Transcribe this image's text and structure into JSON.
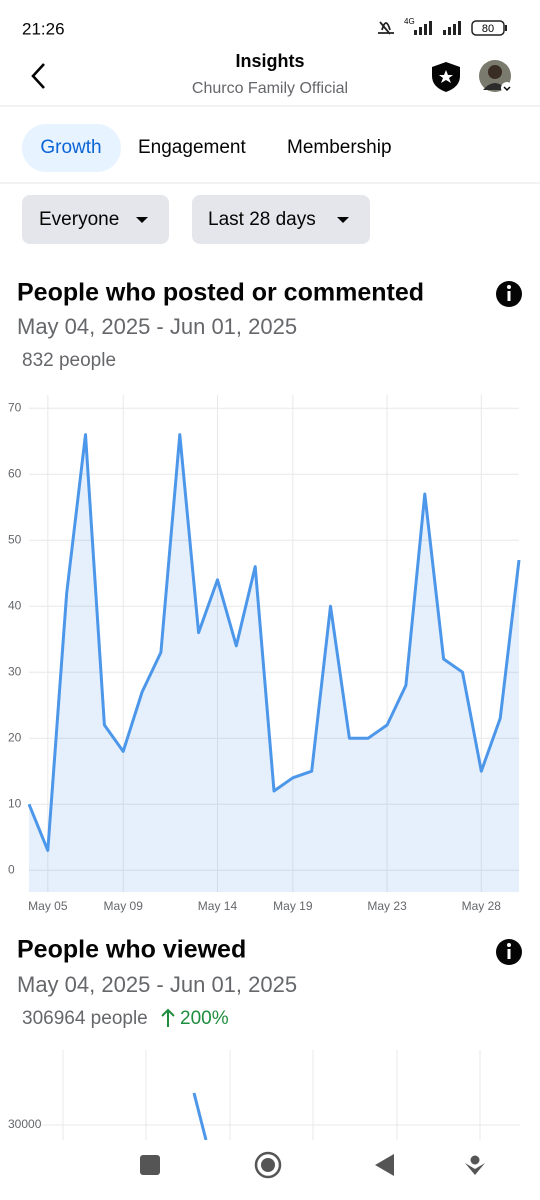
{
  "status": {
    "time": "21:26",
    "network": "4G",
    "battery": "80"
  },
  "header": {
    "title": "Insights",
    "subtitle": "Churco Family Official"
  },
  "tabs": [
    "Growth",
    "Engagement",
    "Membership"
  ],
  "filters": [
    "Everyone",
    "Last 28 days"
  ],
  "chart_data": [
    {
      "type": "area",
      "title": "People who posted or commented",
      "subtitle": "May 04, 2025 - Jun 01, 2025",
      "total": "832 people",
      "categories": [
        null,
        "May 05",
        null,
        null,
        null,
        "May 09",
        null,
        null,
        null,
        null,
        "May 14",
        null,
        null,
        null,
        "May 19",
        null,
        null,
        null,
        null,
        "May 23",
        null,
        null,
        null,
        null,
        "May 28",
        null,
        null
      ],
      "values": [
        10,
        3,
        42,
        66,
        22,
        18,
        27,
        33,
        66,
        36,
        44,
        34,
        46,
        12,
        14,
        15,
        40,
        20,
        20,
        22,
        28,
        57,
        32,
        30,
        15,
        23,
        47
      ],
      "color": "#4c97ea",
      "ylim": [
        -3.3,
        72
      ],
      "yticks": [
        0,
        10,
        20,
        30,
        40,
        50,
        60,
        70
      ],
      "grid": true
    },
    {
      "type": "line",
      "title": "People who viewed",
      "subtitle": "May 04, 2025 - Jun 01, 2025",
      "total": "306964 people",
      "change": "200%",
      "color": "#4c97ea",
      "yticks": [
        30000
      ]
    }
  ]
}
